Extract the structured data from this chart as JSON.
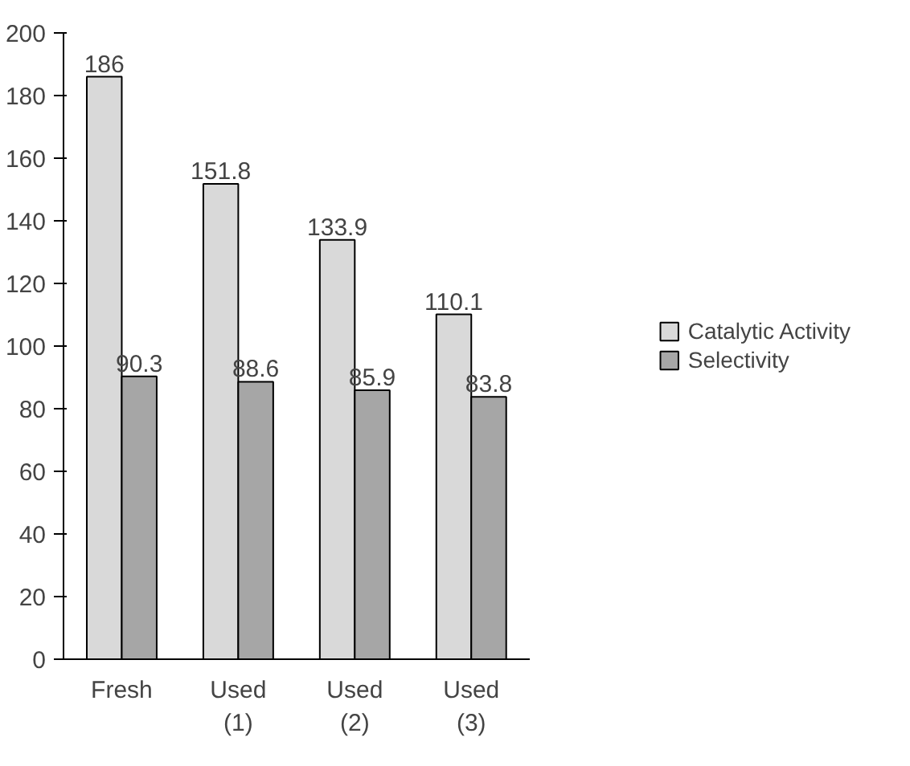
{
  "chart_data": {
    "type": "bar",
    "categories": [
      "Fresh",
      "Used\n(1)",
      "Used\n(2)",
      "Used\n(3)"
    ],
    "series": [
      {
        "name": "Catalytic Activity",
        "color": "#d9d9d9",
        "values": [
          186,
          151.8,
          133.9,
          110.1
        ]
      },
      {
        "name": "Selectivity",
        "color": "#a6a6a6",
        "values": [
          90.3,
          88.6,
          85.9,
          83.8
        ]
      }
    ],
    "ylim": [
      0,
      200
    ],
    "yticks": [
      0,
      20,
      40,
      60,
      80,
      100,
      120,
      140,
      160,
      180,
      200
    ],
    "grid": false,
    "legend": "right",
    "data_labels": true
  }
}
